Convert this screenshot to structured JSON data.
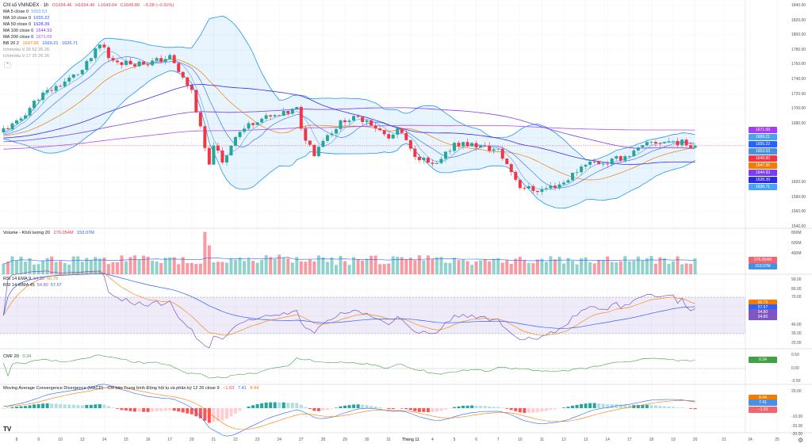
{
  "header": {
    "symbol": "Chỉ số VNINDEX · 1h",
    "open": "O1654.46",
    "high": "H1654.46",
    "low": "L1643.04",
    "close": "C1649.80",
    "change": "−5.08 (−0.31%)"
  },
  "legend": {
    "ma": [
      {
        "label": "MA 5 close 0",
        "value": "1653.53",
        "color": "#5b9cf6"
      },
      {
        "label": "MA 10 close 0",
        "value": "1655.22",
        "color": "#2962ff"
      },
      {
        "label": "MA 50 close 0",
        "value": "1628.39",
        "color": "#3d2bf5"
      },
      {
        "label": "MA 100 close 0",
        "value": "1644.93",
        "color": "#7b3ff2"
      },
      {
        "label": "MA 200 close 0",
        "value": "1671.09",
        "color": "#b04cf5"
      }
    ],
    "bb": {
      "label": "BB 20 2",
      "basis": "1647.96",
      "upper": "1669.21",
      "lower": "1626.71"
    },
    "ichimoku": [
      "Ichimoku 9 26 52 26 26",
      "Ichimoku 9 17 26 26 26"
    ],
    "volume": {
      "label": "Volume - Khối lượng 20",
      "value": "276.054M",
      "ma": "153.07M"
    },
    "rsi_ema": {
      "label": "RSI 14 EMA 9",
      "rsi": "54.80",
      "ma": "60.79"
    },
    "rsi_wma": {
      "label": "RSI 14 WMA 45",
      "rsi": "54.80",
      "ma": "57.57"
    },
    "cmf": {
      "label": "CMF 20",
      "value": "0.34"
    },
    "macd": {
      "label": "Moving Average Convergence Divergence (MACD) - Chỉ báo Trung bình Động hội tụ và phân kỳ 12 26 close 9",
      "hist": "−1.03",
      "macd": "7.41",
      "signal": "8.44"
    }
  },
  "axes": {
    "price": [
      "1840.00",
      "1820.00",
      "1800.00",
      "1780.00",
      "1760.00",
      "1740.00",
      "1720.00",
      "1700.00",
      "1680.00",
      "1600.00",
      "1580.00",
      "1560.00",
      "1540.00"
    ],
    "volume": [
      "800M",
      "600M",
      "400M"
    ],
    "rsi": [
      "90.00",
      "80.00",
      "70.00",
      "40.00",
      "30.00",
      "20.00"
    ],
    "cmf": [
      "0.50",
      "0.00",
      "-0.50"
    ],
    "macd": [
      "20.00",
      "-10.00",
      "-20.00",
      "-30.00"
    ],
    "x": [
      "8",
      "9",
      "10",
      "13",
      "14",
      "15",
      "16",
      "17",
      "20",
      "21",
      "22",
      "23",
      "24",
      "27",
      "28",
      "29",
      "30",
      "31",
      "Tháng 11",
      "4",
      "5",
      "6",
      "7",
      "10",
      "11",
      "12",
      "13",
      "14",
      "17",
      "18",
      "19",
      "20",
      "21",
      "24",
      "25"
    ]
  },
  "price_badges": [
    {
      "value": "1671.09",
      "color": "#a33ef2"
    },
    {
      "value": "1669.21",
      "color": "#4aa3f0"
    },
    {
      "value": "1655.22",
      "color": "#2962ff"
    },
    {
      "value": "1653.53",
      "color": "#4a90e2"
    },
    {
      "value": "1649.80",
      "color": "#f23645"
    },
    {
      "value": "1647.96",
      "color": "#f57c00"
    },
    {
      "value": "1644.93",
      "color": "#7b3ff2"
    },
    {
      "value": "1628.39",
      "color": "#2b2bf0"
    },
    {
      "value": "1626.71",
      "color": "#4aa3f0"
    }
  ],
  "other_badges": {
    "volume": [
      {
        "value": "276.054M",
        "color": "#f2646f"
      },
      {
        "value": "153.07M",
        "color": "#4a90e2"
      }
    ],
    "rsi": [
      {
        "value": "60.79",
        "color": "#f57c00"
      },
      {
        "value": "57.57",
        "color": "#2962ff"
      },
      {
        "value": "54.80",
        "color": "#7e57c2"
      },
      {
        "value": "54.80",
        "color": "#7e57c2"
      }
    ],
    "cmf": [
      {
        "value": "0.34",
        "color": "#43a047"
      }
    ],
    "macd": [
      {
        "value": "8.44",
        "color": "#f57c00"
      },
      {
        "value": "7.41",
        "color": "#4a90e2"
      },
      {
        "value": "−1.03",
        "color": "#f2646f"
      }
    ]
  },
  "colors": {
    "up": "#26a69a",
    "down": "#f23645"
  },
  "chart_data": {
    "type": "candlestick",
    "price_path_day_index_vs_price": [
      [
        -0.6,
        1672
      ],
      [
        0,
        1680
      ],
      [
        1,
        1716
      ],
      [
        2,
        1733
      ],
      [
        3,
        1752
      ],
      [
        3.9,
        1790
      ],
      [
        4.2,
        1768
      ],
      [
        5,
        1762
      ],
      [
        6,
        1762
      ],
      [
        7,
        1770
      ],
      [
        7.5,
        1745
      ],
      [
        8,
        1724
      ],
      [
        8.8,
        1620
      ],
      [
        9,
        1654
      ],
      [
        9.4,
        1625
      ],
      [
        10,
        1665
      ],
      [
        11,
        1686
      ],
      [
        12,
        1690
      ],
      [
        12.8,
        1700
      ],
      [
        13,
        1670
      ],
      [
        13.6,
        1640
      ],
      [
        14,
        1659
      ],
      [
        15,
        1686
      ],
      [
        16,
        1686
      ],
      [
        17,
        1659
      ],
      [
        17.5,
        1672
      ],
      [
        18,
        1643
      ],
      [
        19,
        1622
      ],
      [
        19.3,
        1625
      ],
      [
        20,
        1654
      ],
      [
        21,
        1650
      ],
      [
        22,
        1643
      ],
      [
        22.5,
        1620
      ],
      [
        23,
        1595
      ],
      [
        23.6,
        1590
      ],
      [
        24,
        1590
      ],
      [
        25,
        1600
      ],
      [
        26,
        1627
      ],
      [
        27,
        1627
      ],
      [
        28,
        1638
      ],
      [
        29,
        1654
      ],
      [
        30,
        1656
      ],
      [
        31,
        1650
      ]
    ],
    "price_range": [
      1540,
      1840
    ]
  }
}
